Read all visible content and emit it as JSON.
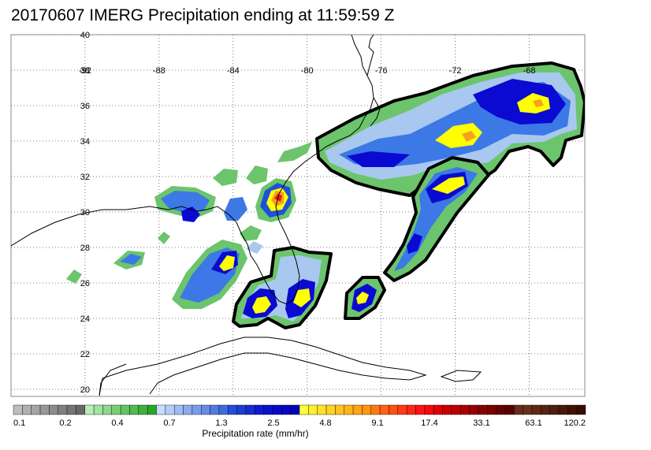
{
  "title": "20170607 IMERG Precipitation ending at 11:59:59 Z",
  "map": {
    "lon_range": [
      -96,
      -65
    ],
    "lat_range": [
      19.6,
      40
    ],
    "lon_ticks": [
      {
        "value": -92,
        "label": "-92"
      },
      {
        "value": -88,
        "label": "-88"
      },
      {
        "value": -84,
        "label": "-84"
      },
      {
        "value": -80,
        "label": "-80"
      },
      {
        "value": -76,
        "label": "-76"
      },
      {
        "value": -72,
        "label": "-72"
      },
      {
        "value": -68,
        "label": "-68"
      }
    ],
    "lat_ticks": [
      {
        "value": 40,
        "label": "40"
      },
      {
        "value": 38,
        "label": "38"
      },
      {
        "value": 36,
        "label": "36"
      },
      {
        "value": 34,
        "label": "34"
      },
      {
        "value": 32,
        "label": "32"
      },
      {
        "value": 30,
        "label": "30"
      },
      {
        "value": 28,
        "label": "28"
      },
      {
        "value": 26,
        "label": "26"
      },
      {
        "value": 24,
        "label": "24"
      },
      {
        "value": 22,
        "label": "22"
      },
      {
        "value": 20,
        "label": "20"
      }
    ],
    "grid": true,
    "palette": {
      "outline": "#000000",
      "green": "#6cc46c",
      "light_blue": "#a8c8f0",
      "mid_blue": "#3c78e6",
      "blue": "#1e50dc",
      "deep_blue": "#0a0ad2",
      "yellow": "#ffff00",
      "orange": "#f8a020",
      "red": "#e61e14"
    }
  },
  "colorbar": {
    "title": "Precipitation rate (mm/hr)",
    "labels": [
      "0.1",
      "0.2",
      "0.4",
      "0.7",
      "1.3",
      "2.5",
      "4.8",
      "9.1",
      "17.4",
      "33.1",
      "63.1",
      "120.2"
    ],
    "colors": [
      "#bdbdbd",
      "#b0b0b0",
      "#a4a4a4",
      "#989898",
      "#8c8c8c",
      "#808080",
      "#747474",
      "#686868",
      "#b8ecb8",
      "#a2e2a2",
      "#8cd88c",
      "#78ce78",
      "#64c464",
      "#50ba50",
      "#3cb03c",
      "#28a628",
      "#c8dcff",
      "#b4ccfa",
      "#a0bcf5",
      "#8cacf0",
      "#789ceb",
      "#648ce6",
      "#507ce1",
      "#3c6cdc",
      "#2050d7",
      "#1a3ed2",
      "#142cd0",
      "#0e1ace",
      "#0a10cc",
      "#0808ca",
      "#0606c4",
      "#0404be",
      "#ffff33",
      "#fff02d",
      "#ffe128",
      "#ffd223",
      "#ffc31e",
      "#ffb419",
      "#ffa514",
      "#ff960f",
      "#ff7814",
      "#ff6414",
      "#ff5014",
      "#ff3c14",
      "#ff2814",
      "#ff1414",
      "#f00a0a",
      "#e00000",
      "#cc0000",
      "#bb0000",
      "#aa0000",
      "#990000",
      "#880000",
      "#780000",
      "#680000",
      "#580000",
      "#6b2a1a",
      "#663018",
      "#5e2a14",
      "#572410",
      "#4f1e0c",
      "#481808",
      "#401204",
      "#380c00"
    ]
  }
}
